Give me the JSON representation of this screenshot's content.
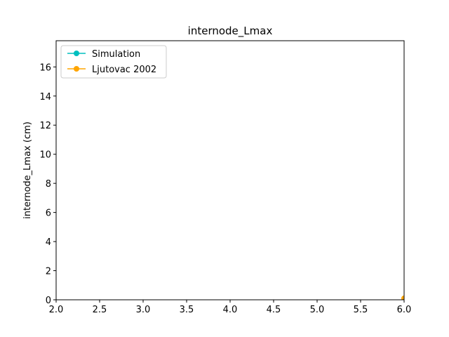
{
  "chart_data": {
    "type": "line",
    "title": "internode_Lmax",
    "xlabel": "",
    "ylabel": "internode_Lmax (cm)",
    "xlim": [
      2.0,
      6.0
    ],
    "ylim": [
      0,
      17.8
    ],
    "xticks": [
      "2.0",
      "2.5",
      "3.0",
      "3.5",
      "4.0",
      "4.5",
      "5.0",
      "5.5",
      "6.0"
    ],
    "yticks": [
      "0",
      "2",
      "4",
      "6",
      "8",
      "10",
      "12",
      "14",
      "16"
    ],
    "grid": false,
    "legend_position": "top-left",
    "series": [
      {
        "name": "Simulation",
        "color": "#00bfbf",
        "marker": "circle",
        "x": [],
        "y": []
      },
      {
        "name": "Ljutovac 2002",
        "color": "#ffa500",
        "marker": "circle",
        "x": [
          6.0
        ],
        "y": [
          0.1
        ]
      }
    ]
  }
}
